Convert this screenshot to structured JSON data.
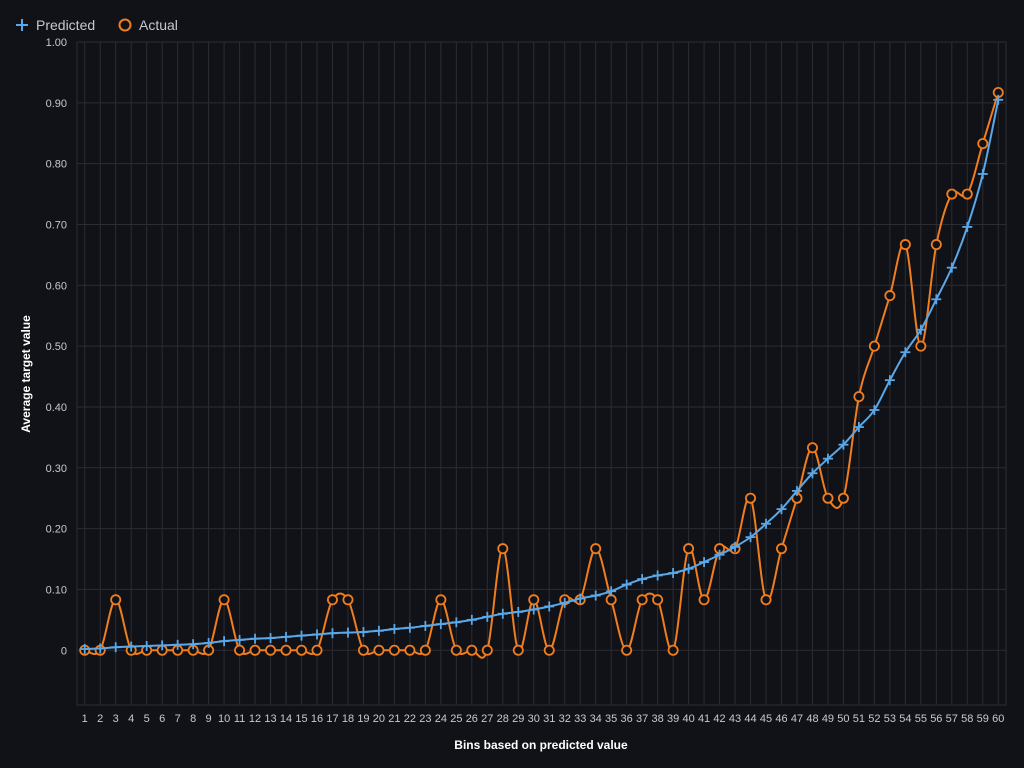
{
  "chart_data": {
    "type": "line",
    "xlabel": "Bins based on predicted value",
    "ylabel": "Average target value",
    "x": [
      1,
      2,
      3,
      4,
      5,
      6,
      7,
      8,
      9,
      10,
      11,
      12,
      13,
      14,
      15,
      16,
      17,
      18,
      19,
      20,
      21,
      22,
      23,
      24,
      25,
      26,
      27,
      28,
      29,
      30,
      31,
      32,
      33,
      34,
      35,
      36,
      37,
      38,
      39,
      40,
      41,
      42,
      43,
      44,
      45,
      46,
      47,
      48,
      49,
      50,
      51,
      52,
      53,
      54,
      55,
      56,
      57,
      58,
      59,
      60
    ],
    "ylim": [
      -0.09,
      1.0
    ],
    "yticks": [
      0,
      0.1,
      0.2,
      0.3,
      0.4,
      0.5,
      0.6,
      0.7,
      0.8,
      0.9,
      1.0
    ],
    "ytick_labels": [
      "0",
      "0.10",
      "0.20",
      "0.30",
      "0.40",
      "0.50",
      "0.60",
      "0.70",
      "0.80",
      "0.90",
      "1.00"
    ],
    "grid": true,
    "legend_position": "top-left",
    "series": [
      {
        "name": "Predicted",
        "color": "#5aa8e8",
        "marker": "plus",
        "values": [
          0.002,
          0.003,
          0.005,
          0.006,
          0.007,
          0.008,
          0.009,
          0.01,
          0.012,
          0.015,
          0.017,
          0.019,
          0.02,
          0.022,
          0.024,
          0.026,
          0.028,
          0.029,
          0.03,
          0.032,
          0.035,
          0.037,
          0.04,
          0.043,
          0.046,
          0.05,
          0.055,
          0.06,
          0.063,
          0.067,
          0.072,
          0.078,
          0.085,
          0.09,
          0.097,
          0.108,
          0.117,
          0.123,
          0.127,
          0.134,
          0.145,
          0.157,
          0.17,
          0.186,
          0.208,
          0.232,
          0.262,
          0.291,
          0.315,
          0.338,
          0.367,
          0.395,
          0.444,
          0.49,
          0.527,
          0.577,
          0.629,
          0.696,
          0.783,
          0.905
        ]
      },
      {
        "name": "Actual",
        "color": "#f07d1e",
        "marker": "circle",
        "values": [
          0,
          0,
          0.083,
          0,
          0,
          0,
          0,
          0,
          0,
          0.083,
          0,
          0,
          0,
          0,
          0,
          0,
          0.083,
          0.083,
          0,
          0,
          0,
          0,
          0,
          0.083,
          0,
          0,
          0,
          0.167,
          0,
          0.083,
          0,
          0.083,
          0.083,
          0.167,
          0.083,
          0,
          0.083,
          0.083,
          0,
          0.167,
          0.083,
          0.167,
          0.167,
          0.25,
          0.083,
          0.167,
          0.25,
          0.333,
          0.25,
          0.25,
          0.417,
          0.5,
          0.583,
          0.667,
          0.5,
          0.667,
          0.75,
          0.75,
          0.833,
          0.917
        ]
      }
    ]
  },
  "colors": {
    "background": "#111217",
    "grid": "#2b2d33",
    "tick_text": "#c7c9cd",
    "axis_title": "#ffffff"
  }
}
